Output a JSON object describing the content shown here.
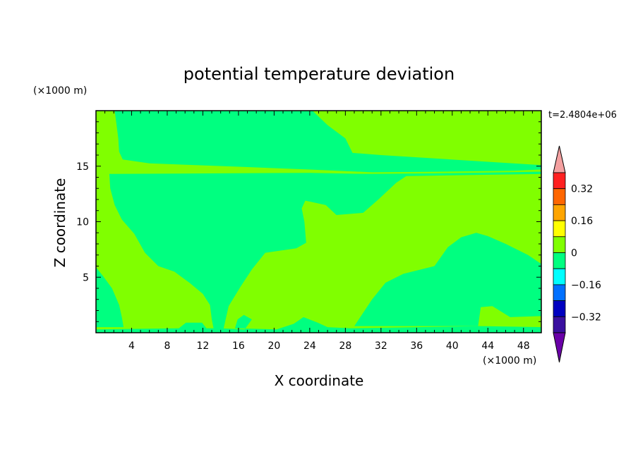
{
  "chart_data": {
    "type": "heatmap",
    "title": "potential temperature deviation",
    "xlabel": "X coordinate",
    "ylabel": "Z coordinate",
    "x_unit": "(×1000 m)",
    "y_unit": "(×1000 m)",
    "time_label": "t=2.4804e+06",
    "xlim": [
      0,
      50
    ],
    "ylim": [
      0,
      20
    ],
    "x_ticks": [
      4,
      8,
      12,
      16,
      20,
      24,
      28,
      32,
      36,
      40,
      44,
      48
    ],
    "y_ticks": [
      5,
      10,
      15
    ],
    "background_color": "#80ff00",
    "regions": [
      {
        "name": "upper-negative-layer",
        "level": "-0.08 to 0",
        "color": "#00ff80",
        "points": [
          [
            2.1,
            20
          ],
          [
            24.3,
            20
          ],
          [
            26,
            18.7
          ],
          [
            28,
            17.5
          ],
          [
            28.8,
            16.2
          ],
          [
            32,
            16
          ],
          [
            50,
            15.1
          ],
          [
            50,
            14.7
          ],
          [
            47,
            14.6
          ],
          [
            38,
            14.5
          ],
          [
            31,
            14.45
          ],
          [
            24,
            14.7
          ],
          [
            16,
            14.95
          ],
          [
            6,
            15.25
          ],
          [
            3,
            15.6
          ],
          [
            2.6,
            16.3
          ],
          [
            2.5,
            17.5
          ],
          [
            2.3,
            18.8
          ]
        ]
      },
      {
        "name": "main-negative-region",
        "level": "-0.08 to 0",
        "color": "#00ff80",
        "points": [
          [
            1.5,
            14.3
          ],
          [
            24,
            14.4
          ],
          [
            30,
            14.3
          ],
          [
            35,
            14.2
          ],
          [
            33.7,
            13.5
          ],
          [
            31.7,
            12
          ],
          [
            30,
            10.8
          ],
          [
            27,
            10.6
          ],
          [
            25.8,
            11.5
          ],
          [
            23.5,
            11.9
          ],
          [
            23.1,
            11.2
          ],
          [
            23.4,
            10
          ],
          [
            23.6,
            8.1
          ],
          [
            22.5,
            7.6
          ],
          [
            19,
            7.2
          ],
          [
            17.5,
            5.7
          ],
          [
            16.2,
            4.1
          ],
          [
            14.9,
            2.4
          ],
          [
            14.3,
            0.3
          ],
          [
            14,
            0
          ],
          [
            13.3,
            0
          ],
          [
            13,
            1.2
          ],
          [
            12.8,
            2.5
          ],
          [
            12,
            3.5
          ],
          [
            10.5,
            4.5
          ],
          [
            8.8,
            5.5
          ],
          [
            7,
            6
          ],
          [
            5.5,
            7.2
          ],
          [
            4.3,
            8.9
          ],
          [
            2.9,
            10.2
          ],
          [
            2.1,
            11.5
          ],
          [
            1.6,
            13
          ]
        ]
      },
      {
        "name": "lower-right-negative-region",
        "level": "-0.08 to 0",
        "color": "#00ff80",
        "points": [
          [
            29,
            0.6
          ],
          [
            31,
            3
          ],
          [
            32.5,
            4.5
          ],
          [
            34.5,
            5.3
          ],
          [
            38,
            6
          ],
          [
            39.5,
            7.7
          ],
          [
            41,
            8.6
          ],
          [
            42.7,
            9
          ],
          [
            44,
            8.7
          ],
          [
            46,
            8
          ],
          [
            48.5,
            7
          ],
          [
            50,
            6.2
          ],
          [
            50,
            1.5
          ],
          [
            46.5,
            1.4
          ],
          [
            44.5,
            2.4
          ],
          [
            43.2,
            2.3
          ],
          [
            42.9,
            0.6
          ]
        ]
      },
      {
        "name": "left-edge-negative-region",
        "level": "-0.08 to 0",
        "color": "#00ff80",
        "points": [
          [
            0,
            5.9
          ],
          [
            0.8,
            5.1
          ],
          [
            1.8,
            4
          ],
          [
            2.6,
            2.5
          ],
          [
            2.9,
            1.4
          ],
          [
            3.1,
            0.5
          ],
          [
            0,
            0.5
          ]
        ]
      },
      {
        "name": "bottom-negative-strip",
        "level": "-0.08 to 0",
        "color": "#00ff80",
        "points": [
          [
            0,
            0
          ],
          [
            50,
            0
          ],
          [
            50,
            0.5
          ],
          [
            43,
            0.6
          ],
          [
            28.6,
            0.4
          ],
          [
            26,
            0.5
          ],
          [
            24.9,
            0.9
          ],
          [
            23.3,
            1.4
          ],
          [
            22.2,
            0.8
          ],
          [
            20.3,
            0.3
          ],
          [
            15.6,
            0.4
          ],
          [
            15.9,
            1.2
          ],
          [
            16.6,
            1.6
          ],
          [
            17.5,
            1.2
          ],
          [
            16.7,
            0.3
          ],
          [
            13.9,
            0.4
          ],
          [
            12.4,
            0.4
          ],
          [
            11.9,
            0.9
          ],
          [
            10.1,
            0.9
          ],
          [
            9.3,
            0.4
          ],
          [
            0,
            0.3
          ]
        ]
      },
      {
        "name": "sublayer-negative-strip",
        "level": "-0.08 to 0",
        "color": "#00ff80",
        "points": [
          [
            21,
            14.15
          ],
          [
            30,
            14.05
          ],
          [
            38,
            14.15
          ],
          [
            50,
            14.3
          ],
          [
            50,
            14.5
          ],
          [
            38,
            14.35
          ],
          [
            30,
            14.3
          ],
          [
            21,
            14.3
          ]
        ]
      }
    ],
    "colorbar": {
      "ticks": [
        "0.32",
        "0.16",
        "0",
        "−0.16",
        "−0.32"
      ],
      "bands": [
        "#ff2020",
        "#ff6600",
        "#ffa500",
        "#ffff00",
        "#80ff00",
        "#00ff80",
        "#00ffff",
        "#0070ff",
        "#0000c0",
        "#3a10a0"
      ],
      "over_color": "#f4a0a0",
      "under_color": "#6a00a8"
    }
  }
}
